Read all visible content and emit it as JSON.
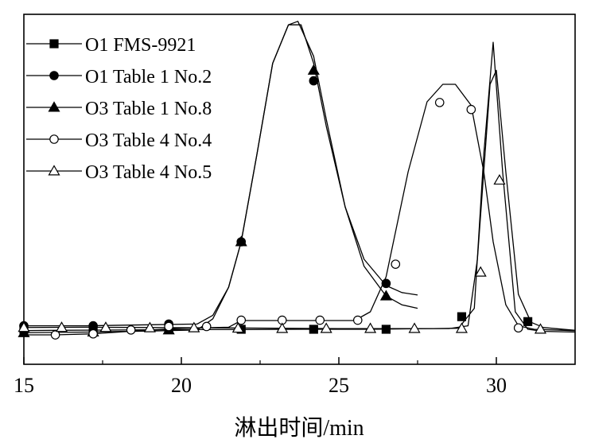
{
  "chart_data": {
    "type": "line",
    "xlabel": "淋出时间/min",
    "ylabel": "",
    "xlim": [
      15,
      32.5
    ],
    "ylim": [
      0,
      1.0
    ],
    "y_ticks_visible": false,
    "grid": false,
    "legend_position": "top-left",
    "x_ticks": [
      {
        "value": 15,
        "label": "15"
      },
      {
        "value": 20,
        "label": "20"
      },
      {
        "value": 25,
        "label": "25"
      },
      {
        "value": 30,
        "label": "30"
      }
    ],
    "series": [
      {
        "name": "O1 FMS-9921",
        "marker": "square-filled",
        "curve": [
          [
            14.5,
            0.096
          ],
          [
            16,
            0.097
          ],
          [
            18,
            0.098
          ],
          [
            20,
            0.099
          ],
          [
            22,
            0.099
          ],
          [
            24,
            0.1
          ],
          [
            26,
            0.1
          ],
          [
            28,
            0.102
          ],
          [
            28.8,
            0.103
          ],
          [
            29.3,
            0.16
          ],
          [
            29.6,
            0.6
          ],
          [
            29.9,
            0.92
          ],
          [
            30.2,
            0.55
          ],
          [
            30.6,
            0.15
          ],
          [
            31,
            0.1
          ],
          [
            31.5,
            0.094
          ],
          [
            32.5,
            0.092
          ]
        ],
        "markers": [
          [
            15,
            0.1
          ],
          [
            17.2,
            0.1
          ],
          [
            19.6,
            0.1
          ],
          [
            21.9,
            0.1
          ],
          [
            24.2,
            0.1
          ],
          [
            26.5,
            0.1
          ],
          [
            28.9,
            0.136
          ],
          [
            31,
            0.122
          ]
        ]
      },
      {
        "name": "O1 Table 1 No.2",
        "marker": "circle-filled",
        "curve": [
          [
            14.5,
            0.11
          ],
          [
            17,
            0.11
          ],
          [
            19,
            0.113
          ],
          [
            20.5,
            0.115
          ],
          [
            21,
            0.14
          ],
          [
            21.5,
            0.22
          ],
          [
            21.9,
            0.35
          ],
          [
            22.4,
            0.6
          ],
          [
            22.9,
            0.86
          ],
          [
            23.4,
            0.97
          ],
          [
            23.8,
            0.97
          ],
          [
            24.2,
            0.86
          ],
          [
            24.6,
            0.68
          ],
          [
            25.2,
            0.45
          ],
          [
            25.8,
            0.3
          ],
          [
            26.5,
            0.225
          ],
          [
            27,
            0.205
          ],
          [
            27.5,
            0.198
          ]
        ],
        "markers": [
          [
            15,
            0.11
          ],
          [
            17.2,
            0.11
          ],
          [
            19.6,
            0.115
          ],
          [
            21.9,
            0.35
          ],
          [
            24.2,
            0.81
          ],
          [
            26.5,
            0.231
          ]
        ]
      },
      {
        "name": "O3 Table 1 No.8",
        "marker": "triangle-filled",
        "curve": [
          [
            14.5,
            0.09
          ],
          [
            17,
            0.092
          ],
          [
            19,
            0.095
          ],
          [
            20.5,
            0.098
          ],
          [
            21,
            0.13
          ],
          [
            21.5,
            0.22
          ],
          [
            21.9,
            0.35
          ],
          [
            22.4,
            0.6
          ],
          [
            22.9,
            0.86
          ],
          [
            23.4,
            0.97
          ],
          [
            23.7,
            0.98
          ],
          [
            24.2,
            0.88
          ],
          [
            24.6,
            0.7
          ],
          [
            25.2,
            0.45
          ],
          [
            25.8,
            0.28
          ],
          [
            26.5,
            0.195
          ],
          [
            27,
            0.17
          ],
          [
            27.5,
            0.16
          ]
        ],
        "markers": [
          [
            15,
            0.09
          ],
          [
            17.2,
            0.092
          ],
          [
            19.6,
            0.098
          ],
          [
            21.9,
            0.35
          ],
          [
            24.2,
            0.84
          ],
          [
            26.5,
            0.195
          ]
        ]
      },
      {
        "name": "O3 Table 4 No.4",
        "marker": "circle-open",
        "curve": [
          [
            14.5,
            0.084
          ],
          [
            16,
            0.084
          ],
          [
            17.2,
            0.087
          ],
          [
            18.5,
            0.095
          ],
          [
            20,
            0.103
          ],
          [
            21.5,
            0.106
          ],
          [
            21.9,
            0.125
          ],
          [
            23.2,
            0.125
          ],
          [
            25.5,
            0.125
          ],
          [
            26,
            0.15
          ],
          [
            26.5,
            0.25
          ],
          [
            27.2,
            0.55
          ],
          [
            27.8,
            0.75
          ],
          [
            28.3,
            0.8
          ],
          [
            28.7,
            0.8
          ],
          [
            29.2,
            0.74
          ],
          [
            29.6,
            0.55
          ],
          [
            29.9,
            0.35
          ],
          [
            30.3,
            0.17
          ],
          [
            30.7,
            0.11
          ],
          [
            31.2,
            0.1
          ],
          [
            32.5,
            0.096
          ]
        ],
        "markers": [
          [
            16,
            0.084
          ],
          [
            17.2,
            0.087
          ],
          [
            18.4,
            0.098
          ],
          [
            19.6,
            0.108
          ],
          [
            20.8,
            0.108
          ],
          [
            21.9,
            0.126
          ],
          [
            23.2,
            0.126
          ],
          [
            24.4,
            0.126
          ],
          [
            25.6,
            0.126
          ],
          [
            26.8,
            0.286
          ],
          [
            28.2,
            0.748
          ],
          [
            29.2,
            0.728
          ],
          [
            30.7,
            0.104
          ]
        ]
      },
      {
        "name": "O3 Table 4 No.5",
        "marker": "triangle-open",
        "curve": [
          [
            14.5,
            0.105
          ],
          [
            17,
            0.106
          ],
          [
            19,
            0.105
          ],
          [
            21,
            0.104
          ],
          [
            23,
            0.103
          ],
          [
            25,
            0.102
          ],
          [
            27,
            0.102
          ],
          [
            28.5,
            0.102
          ],
          [
            29.1,
            0.11
          ],
          [
            29.4,
            0.3
          ],
          [
            29.8,
            0.8
          ],
          [
            30,
            0.84
          ],
          [
            30.3,
            0.55
          ],
          [
            30.7,
            0.2
          ],
          [
            31.1,
            0.12
          ],
          [
            31.5,
            0.105
          ],
          [
            32.5,
            0.097
          ]
        ],
        "markers": [
          [
            15,
            0.105
          ],
          [
            16.2,
            0.105
          ],
          [
            17.6,
            0.105
          ],
          [
            19,
            0.104
          ],
          [
            20.4,
            0.104
          ],
          [
            21.8,
            0.103
          ],
          [
            23.2,
            0.102
          ],
          [
            24.6,
            0.102
          ],
          [
            26,
            0.102
          ],
          [
            27.4,
            0.102
          ],
          [
            28.9,
            0.102
          ],
          [
            29.5,
            0.263
          ],
          [
            30.1,
            0.526
          ],
          [
            31.4,
            0.1
          ]
        ]
      }
    ]
  }
}
